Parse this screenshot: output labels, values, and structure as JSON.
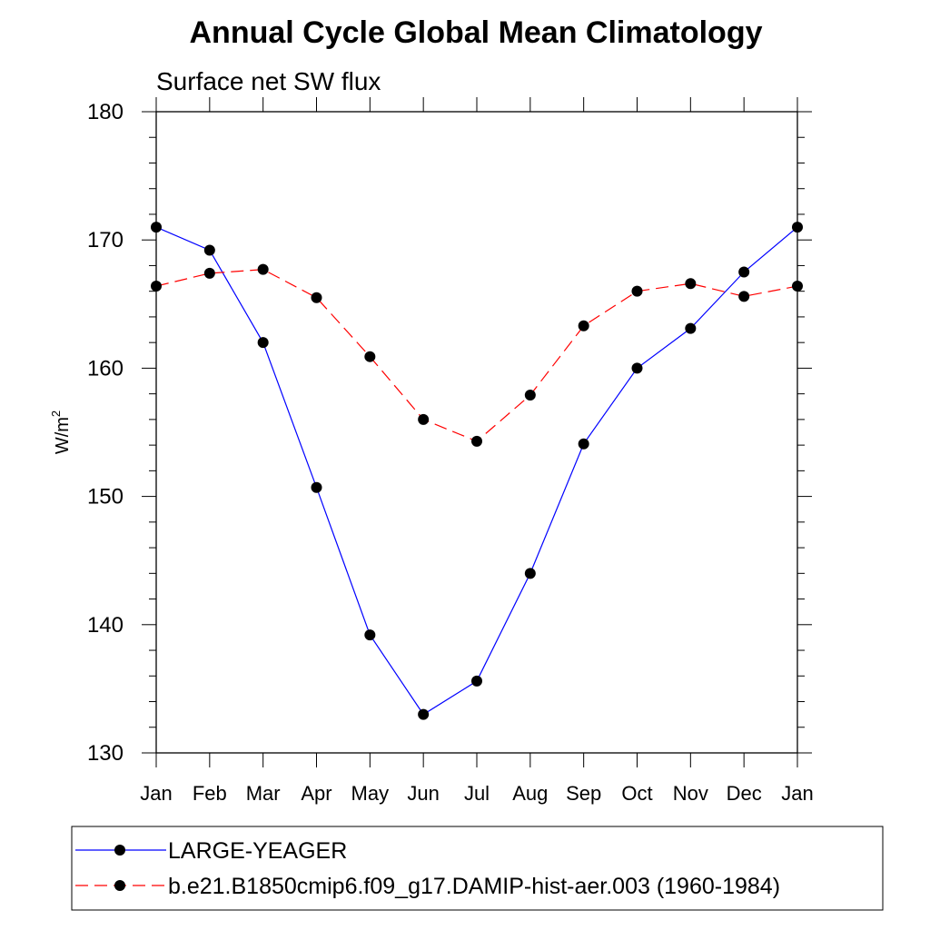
{
  "chart_data": {
    "type": "line",
    "title": "Annual Cycle Global Mean Climatology",
    "subtitle": "Surface net SW flux",
    "ylabel_base": "W/m",
    "ylabel_sup": "2",
    "xlabel": "",
    "categories": [
      "Jan",
      "Feb",
      "Mar",
      "Apr",
      "May",
      "Jun",
      "Jul",
      "Aug",
      "Sep",
      "Oct",
      "Nov",
      "Dec",
      "Jan"
    ],
    "ylim": [
      130,
      180
    ],
    "yticks": [
      130,
      140,
      150,
      160,
      170,
      180
    ],
    "grid": false,
    "legend_placement": "bottom",
    "series": [
      {
        "name": "LARGE-YEAGER",
        "color": "#0000ff",
        "style": "solid",
        "values": [
          171.0,
          169.2,
          162.0,
          150.7,
          139.2,
          133.0,
          135.6,
          144.0,
          154.1,
          160.0,
          163.1,
          167.5,
          171.0
        ]
      },
      {
        "name": "b.e21.B1850cmip6.f09_g17.DAMIP-hist-aer.003 (1960-1984)",
        "color": "#ff0000",
        "style": "dashed",
        "values": [
          166.4,
          167.4,
          167.7,
          165.5,
          160.9,
          156.0,
          154.3,
          157.9,
          163.3,
          166.0,
          166.6,
          165.6,
          166.4
        ]
      }
    ]
  }
}
